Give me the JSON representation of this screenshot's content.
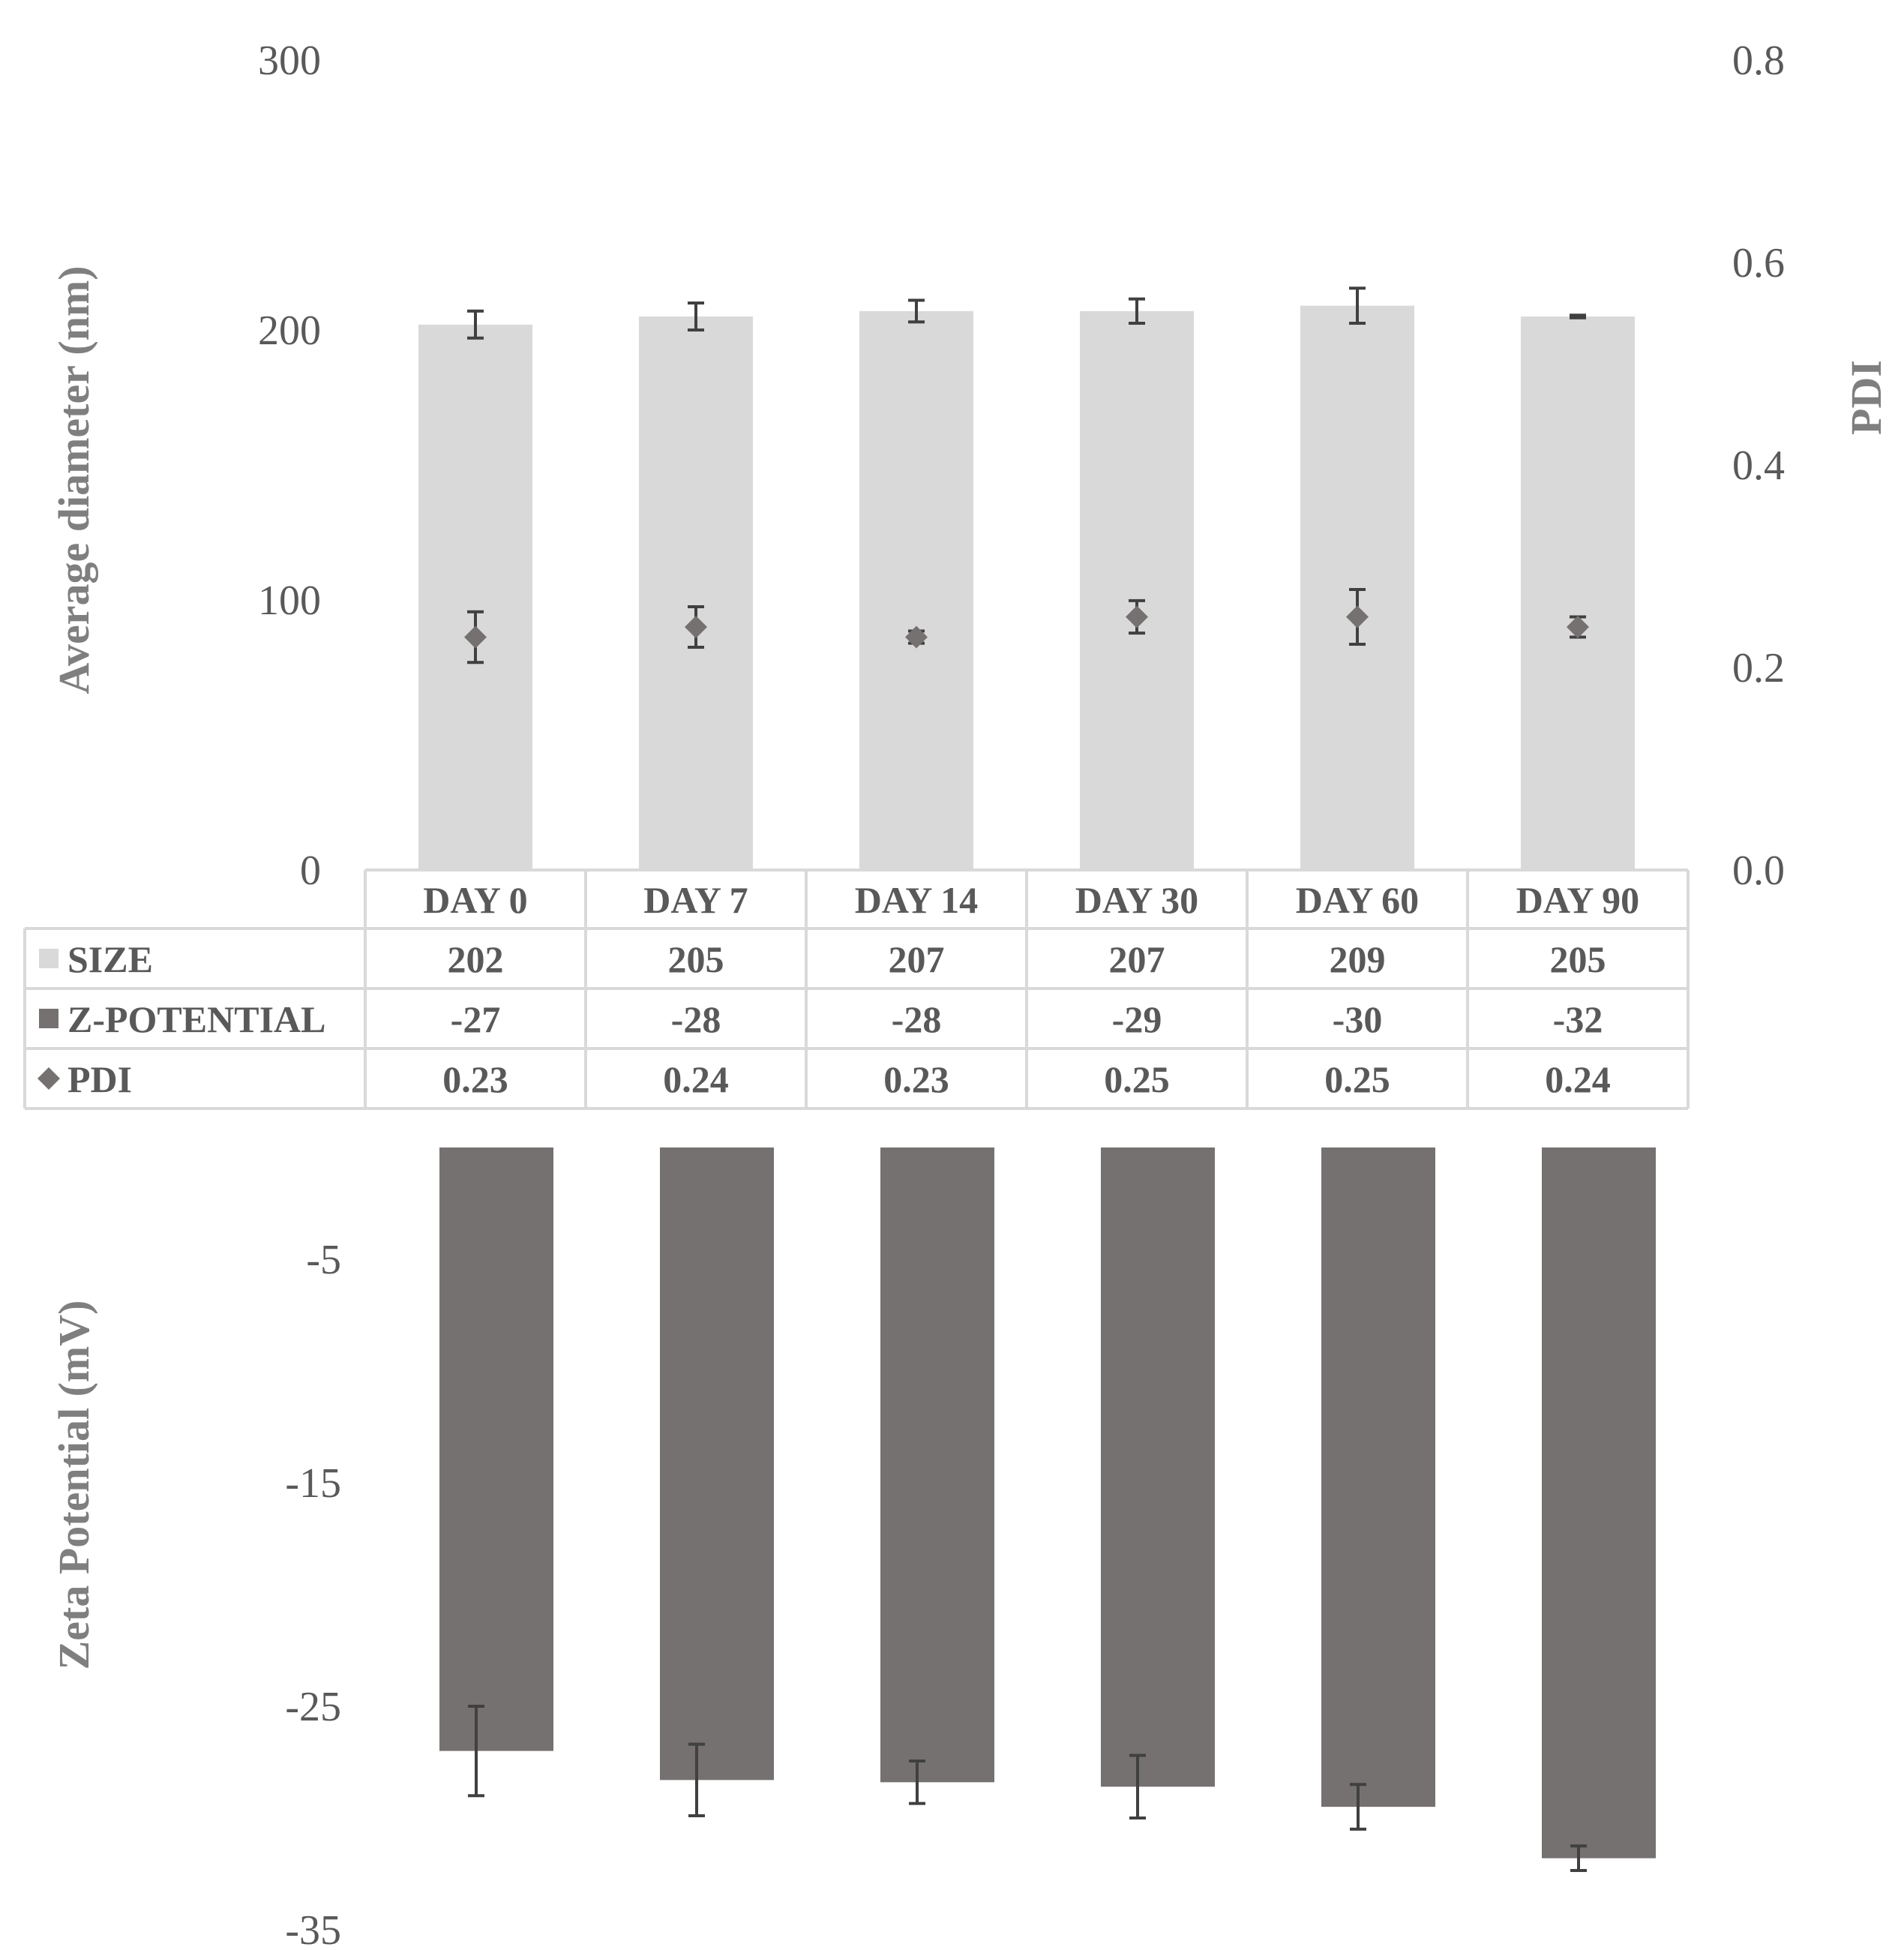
{
  "chart_data": [
    {
      "type": "bar",
      "title": "",
      "categories": [
        "DAY 0",
        "DAY 7",
        "DAY 14",
        "DAY 30",
        "DAY 60",
        "DAY 90"
      ],
      "ylabel": "Average diameter (nm)",
      "ylim": [
        0,
        300
      ],
      "yticks": [
        "0",
        "100",
        "200",
        "300"
      ],
      "y2label": "PDI",
      "y2lim": [
        0,
        0.8
      ],
      "y2ticks": [
        "0.0",
        "0.2",
        "0.4",
        "0.6",
        "0.8"
      ],
      "grid": false,
      "series": [
        {
          "name": "SIZE",
          "kind": "bar",
          "axis": "left",
          "color": "#d9d9d9",
          "values": [
            202,
            205,
            207,
            207,
            209,
            205
          ],
          "errors": [
            5,
            5,
            4,
            4.5,
            6.5,
            0.5
          ]
        },
        {
          "name": "PDI",
          "kind": "scatter",
          "axis": "right",
          "marker": "diamond",
          "color": "#767171",
          "values": [
            0.23,
            0.24,
            0.23,
            0.25,
            0.25,
            0.24
          ],
          "errors": [
            0.025,
            0.02,
            0.006,
            0.016,
            0.027,
            0.01
          ]
        }
      ]
    },
    {
      "type": "bar",
      "title": "",
      "categories": [
        "DAY 0",
        "DAY 7",
        "DAY 14",
        "DAY 30",
        "DAY 60",
        "DAY 90"
      ],
      "ylabel": "Zeta Potential (mV)",
      "ylim": [
        0,
        -35
      ],
      "yticks": [
        "-5",
        "-15",
        "-25",
        "-35"
      ],
      "grid": false,
      "series": [
        {
          "name": "Z-POTENTIAL",
          "kind": "bar",
          "color": "#767171",
          "values": [
            -27,
            -28.3,
            -28.4,
            -28.6,
            -29.5,
            -31.8
          ],
          "errors": [
            2,
            1.6,
            0.95,
            1.4,
            1.0,
            0.55
          ]
        }
      ]
    }
  ],
  "data_table": {
    "columns": [
      "DAY 0",
      "DAY 7",
      "DAY 14",
      "DAY 30",
      "DAY 60",
      "DAY 90"
    ],
    "rows": [
      {
        "label": "SIZE",
        "legend_color": "#d9d9d9",
        "legend_shape": "square",
        "cells": [
          "202",
          "205",
          "207",
          "207",
          "209",
          "205"
        ]
      },
      {
        "label": "Z-POTENTIAL",
        "legend_color": "#767171",
        "legend_shape": "square",
        "cells": [
          "-27",
          "-28",
          "-28",
          "-29",
          "-30",
          "-32"
        ]
      },
      {
        "label": "PDI",
        "legend_color": "#767171",
        "legend_shape": "diamond",
        "cells": [
          "0.23",
          "0.24",
          "0.23",
          "0.25",
          "0.25",
          "0.24"
        ]
      }
    ]
  },
  "colors": {
    "size_bar": "#d9d9d9",
    "zeta_bar": "#767171",
    "pdi_marker": "#767171",
    "error_bar": "#404040",
    "table_border": "#d9d9d9",
    "text": "#595959"
  }
}
